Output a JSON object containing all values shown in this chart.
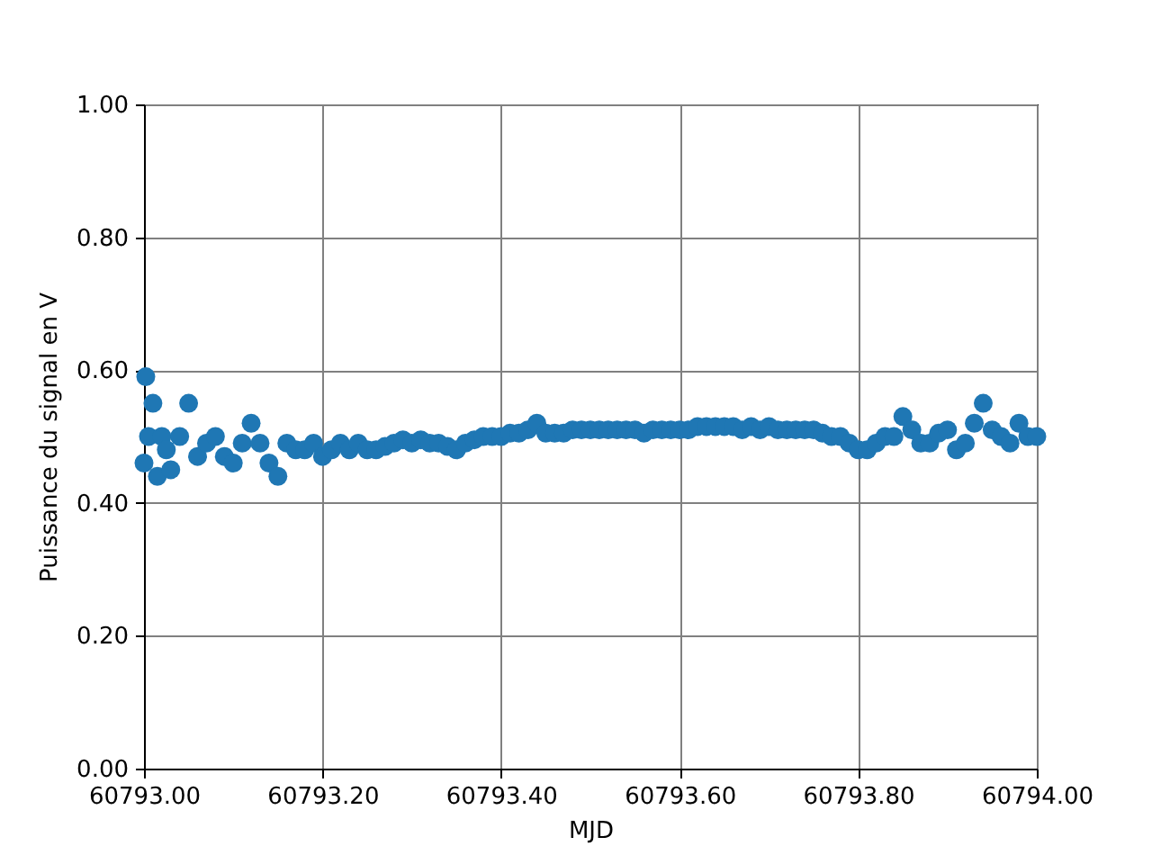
{
  "chart_data": {
    "type": "scatter",
    "xlabel": "MJD",
    "ylabel": "Puissance du signal en V",
    "x": [
      60793.0,
      60793.002,
      60793.005,
      60793.01,
      60793.015,
      60793.02,
      60793.025,
      60793.03,
      60793.04,
      60793.05,
      60793.06,
      60793.07,
      60793.08,
      60793.09,
      60793.1,
      60793.11,
      60793.12,
      60793.13,
      60793.14,
      60793.15,
      60793.16,
      60793.17,
      60793.18,
      60793.19,
      60793.2,
      60793.21,
      60793.22,
      60793.23,
      60793.24,
      60793.25,
      60793.26,
      60793.27,
      60793.28,
      60793.29,
      60793.3,
      60793.31,
      60793.32,
      60793.33,
      60793.34,
      60793.35,
      60793.36,
      60793.37,
      60793.38,
      60793.39,
      60793.4,
      60793.41,
      60793.42,
      60793.43,
      60793.44,
      60793.45,
      60793.46,
      60793.47,
      60793.48,
      60793.49,
      60793.5,
      60793.51,
      60793.52,
      60793.53,
      60793.54,
      60793.55,
      60793.56,
      60793.57,
      60793.58,
      60793.59,
      60793.6,
      60793.61,
      60793.62,
      60793.63,
      60793.64,
      60793.65,
      60793.66,
      60793.67,
      60793.68,
      60793.69,
      60793.7,
      60793.71,
      60793.72,
      60793.73,
      60793.74,
      60793.75,
      60793.76,
      60793.77,
      60793.78,
      60793.79,
      60793.8,
      60793.81,
      60793.82,
      60793.83,
      60793.84,
      60793.85,
      60793.86,
      60793.87,
      60793.88,
      60793.89,
      60793.9,
      60793.91,
      60793.92,
      60793.93,
      60793.94,
      60793.95,
      60793.96,
      60793.97,
      60793.98,
      60793.99,
      60794.0
    ],
    "series": [
      {
        "color": "#1f77b4",
        "values": [
          0.46,
          0.59,
          0.5,
          0.55,
          0.44,
          0.5,
          0.48,
          0.45,
          0.5,
          0.55,
          0.47,
          0.49,
          0.5,
          0.47,
          0.46,
          0.49,
          0.52,
          0.49,
          0.46,
          0.44,
          0.49,
          0.48,
          0.48,
          0.49,
          0.47,
          0.48,
          0.49,
          0.48,
          0.49,
          0.48,
          0.48,
          0.485,
          0.49,
          0.495,
          0.49,
          0.495,
          0.49,
          0.49,
          0.485,
          0.48,
          0.49,
          0.495,
          0.5,
          0.5,
          0.5,
          0.505,
          0.505,
          0.51,
          0.52,
          0.505,
          0.505,
          0.505,
          0.51,
          0.51,
          0.51,
          0.51,
          0.51,
          0.51,
          0.51,
          0.51,
          0.505,
          0.51,
          0.51,
          0.51,
          0.51,
          0.51,
          0.515,
          0.515,
          0.515,
          0.515,
          0.515,
          0.51,
          0.515,
          0.51,
          0.515,
          0.51,
          0.51,
          0.51,
          0.51,
          0.51,
          0.505,
          0.5,
          0.5,
          0.49,
          0.48,
          0.48,
          0.49,
          0.5,
          0.5,
          0.53,
          0.51,
          0.49,
          0.49,
          0.505,
          0.51,
          0.48,
          0.49,
          0.52,
          0.55,
          0.51,
          0.5,
          0.49,
          0.52,
          0.5,
          0.5
        ]
      }
    ],
    "xlim": [
      60793.0,
      60794.0
    ],
    "ylim": [
      0,
      1
    ],
    "xticks": [
      {
        "value": 60793.0,
        "label": "60793.00"
      },
      {
        "value": 60793.2,
        "label": "60793.20"
      },
      {
        "value": 60793.4,
        "label": "60793.40"
      },
      {
        "value": 60793.6,
        "label": "60793.60"
      },
      {
        "value": 60793.8,
        "label": "60793.80"
      },
      {
        "value": 60794.0,
        "label": "60794.00"
      }
    ],
    "yticks": [
      {
        "value": 0,
        "label": "0.00"
      },
      {
        "value": 0.2,
        "label": "0.20"
      },
      {
        "value": 0.4,
        "label": "0.40"
      },
      {
        "value": 0.6,
        "label": "0.60"
      },
      {
        "value": 0.8,
        "label": "0.80"
      },
      {
        "value": 1,
        "label": "1.00"
      }
    ],
    "grid": true,
    "marker": "circle"
  }
}
